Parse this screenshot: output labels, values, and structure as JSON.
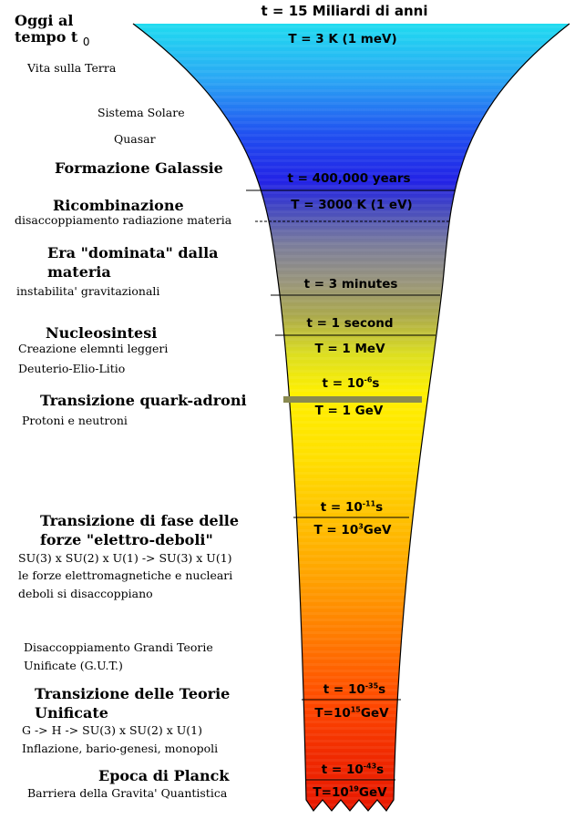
{
  "left_labels": {
    "today": {
      "heading": "Oggi al tempo t",
      "subscript": "0",
      "line2": "Vita sulla Terra"
    },
    "solar_system": "Sistema Solare",
    "quasar": "Quasar",
    "galaxy_formation": "Formazione Galassie",
    "recombination": {
      "heading": "Ricombinazione",
      "sub": "disaccoppiamento radiazione materia"
    },
    "matter_era": {
      "heading": "Era \"dominata\" dalla materia",
      "sub": "instabilita' gravitazionali"
    },
    "nucleosynthesis": {
      "heading": "Nucleosintesi",
      "sub1": "Creazione elemnti leggeri",
      "sub2": "Deuterio-Elio-Litio"
    },
    "quark_hadron": {
      "heading": "Transizione quark-adroni",
      "sub": "Protoni e neutroni"
    },
    "electroweak": {
      "heading": "Transizione di fase delle forze \"elettro-deboli\"",
      "sub1": "SU(3) x SU(2) x U(1) -> SU(3) x U(1)",
      "sub2": "le forze elettromagnetiche e nucleari",
      "sub3": "deboli si disaccoppiano"
    },
    "gut_decoupling": {
      "line1": "Disaccoppiamento Grandi Teorie",
      "line2": "Unificate (G.U.T.)"
    },
    "unified_transition": {
      "heading": "Transizione delle Teorie Unificate",
      "sub1": "G -> H -> SU(3) x SU(2) x U(1)",
      "sub2": "Inflazione, bario-genesi, monopoli"
    },
    "planck": {
      "heading": "Epoca di Planck",
      "sub": "Barriera della Gravita' Quantistica"
    }
  },
  "funnel_labels": {
    "t_now": "t = 15  Miliardi di anni",
    "T_now": "T = 3 K   (1 meV)",
    "t_400k": "t = 400,000 years",
    "T_3000": "T = 3000 K   (1 eV)",
    "t_3min": "t = 3 minutes",
    "t_1s": "t = 1 second",
    "T_1MeV": "T = 1 MeV",
    "t_1e-6": {
      "base": "t = 10",
      "exp": "-6",
      "unit": "s"
    },
    "T_1GeV": "T = 1 GeV",
    "t_1e-11": {
      "base": "t = 10",
      "exp": "-11",
      "unit": "s"
    },
    "T_1e3": {
      "base": "T = 10",
      "exp": "3",
      "unit": "GeV"
    },
    "t_1e-35": {
      "base": "t = 10",
      "exp": "-35",
      "unit": "s"
    },
    "T_1e15": {
      "base": "T=10",
      "exp": "15",
      "unit": "GeV"
    },
    "t_1e-43": {
      "base": "t = 10",
      "exp": "-43",
      "unit": "s"
    },
    "T_1e19": {
      "base": "T=10",
      "exp": "19",
      "unit": "GeV"
    }
  },
  "colors": {
    "top": "#22ddee",
    "blue": "#2222ee",
    "gray": "#8a8a9a",
    "olive": "#a09a60",
    "yellow": "#ffee00",
    "orange": "#ffaa00",
    "red": "#ee2200"
  }
}
